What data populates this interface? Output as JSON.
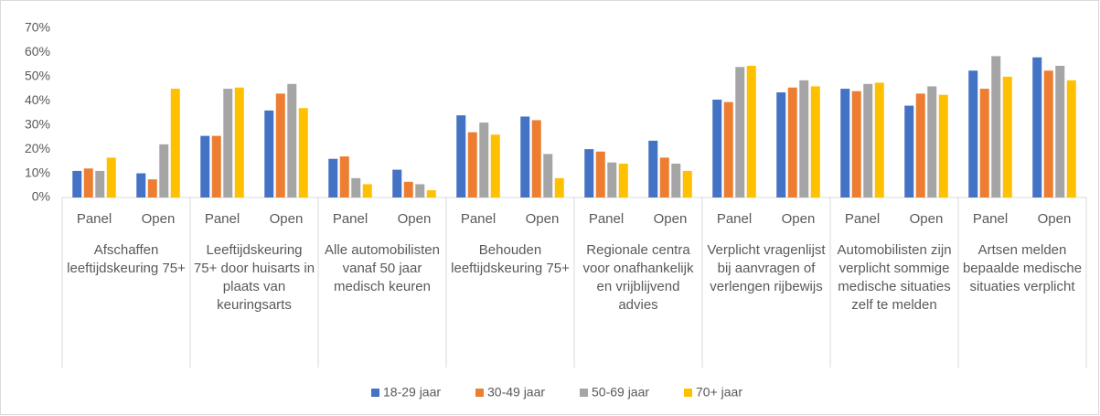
{
  "chart_data": {
    "type": "bar",
    "categories": [
      "Panel",
      "Open",
      "Panel",
      "Open",
      "Panel",
      "Open",
      "Panel",
      "Open",
      "Panel",
      "Open",
      "Panel",
      "Open",
      "Panel",
      "Open",
      "Panel",
      "Open"
    ],
    "groups": [
      "Afschaffen leeftijdskeuring 75+",
      "Leeftijdskeuring 75+ door huisarts in plaats van keuringsarts",
      "Alle automobilisten vanaf 50 jaar medisch keuren",
      "Behouden leeftijdskeuring 75+",
      "Regionale centra voor onafhankelijk en vrijblijvend advies",
      "Verplicht vragenlijst bij aanvragen of verlengen rijbewijs",
      "Automobilisten zijn verplicht sommige medische situaties zelf te melden",
      "Artsen melden bepaalde medische situaties verplicht"
    ],
    "series": [
      {
        "name": "18-29 jaar",
        "color": "#4472c4",
        "values": [
          11,
          10,
          25.5,
          36,
          16,
          11.5,
          34,
          33.5,
          20,
          23.5,
          40.5,
          43.5,
          45,
          38,
          52.5,
          58
        ]
      },
      {
        "name": "30-49 jaar",
        "color": "#ed7d31",
        "values": [
          12,
          7.5,
          25.5,
          43,
          17,
          6.5,
          27,
          32,
          19,
          16.5,
          39.5,
          45.5,
          44,
          43,
          45,
          52.5
        ]
      },
      {
        "name": "50-69 jaar",
        "color": "#a5a5a5",
        "values": [
          11,
          22,
          45,
          47,
          8,
          5.5,
          31,
          18,
          14.5,
          14,
          54,
          48.5,
          47,
          46,
          58.5,
          54.5
        ]
      },
      {
        "name": "70+ jaar",
        "color": "#ffc000",
        "values": [
          16.5,
          45,
          45.5,
          37,
          5.5,
          3,
          26,
          8,
          14,
          11,
          54.5,
          46,
          47.5,
          42.5,
          50,
          48.5
        ]
      }
    ],
    "ylim": [
      0,
      70
    ],
    "yticks": [
      {
        "value": 0,
        "label": "0%"
      },
      {
        "value": 10,
        "label": "10%"
      },
      {
        "value": 20,
        "label": "20%"
      },
      {
        "value": 30,
        "label": "30%"
      },
      {
        "value": 40,
        "label": "40%"
      },
      {
        "value": 50,
        "label": "50%"
      },
      {
        "value": 60,
        "label": "60%"
      },
      {
        "value": 70,
        "label": "70%"
      }
    ],
    "grid": false,
    "legend": "bottom"
  }
}
